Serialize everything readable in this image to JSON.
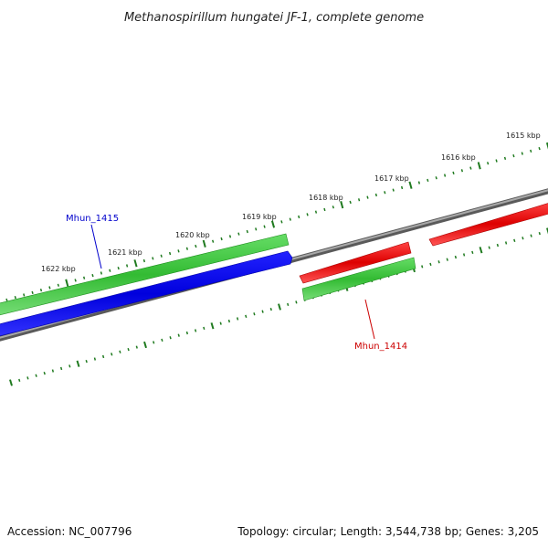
{
  "title": "Methanospirillum hungatei JF-1, complete genome",
  "footer": {
    "accession": "Accession: NC_007796",
    "summary": "Topology: circular; Length: 3,544,738 bp; Genes: 3,205"
  },
  "ruler": {
    "unit": "kbp",
    "ticks_kbp": [
      1622,
      1621,
      1620,
      1619,
      1618,
      1617,
      1616,
      1615
    ],
    "tick_labels": [
      "1622 kbp",
      "1621 kbp",
      "1620 kbp",
      "1619 kbp",
      "1618 kbp",
      "1617 kbp",
      "1616 kbp",
      "1615 kbp"
    ]
  },
  "genes": [
    {
      "id": "Mhun_1415",
      "label": "Mhun_1415",
      "label_color": "#0000cc",
      "track": "blue",
      "strand": "forward"
    },
    {
      "id": "Mhun_1414",
      "label": "Mhun_1414",
      "label_color": "#cc0000",
      "track": "red",
      "strand": "reverse"
    }
  ],
  "colors": {
    "backbone": "#808080",
    "ticks": "#1f7a1f",
    "green_feature": "#33bb33",
    "blue_feature": "#0000ee",
    "red_feature": "#ee0000"
  }
}
